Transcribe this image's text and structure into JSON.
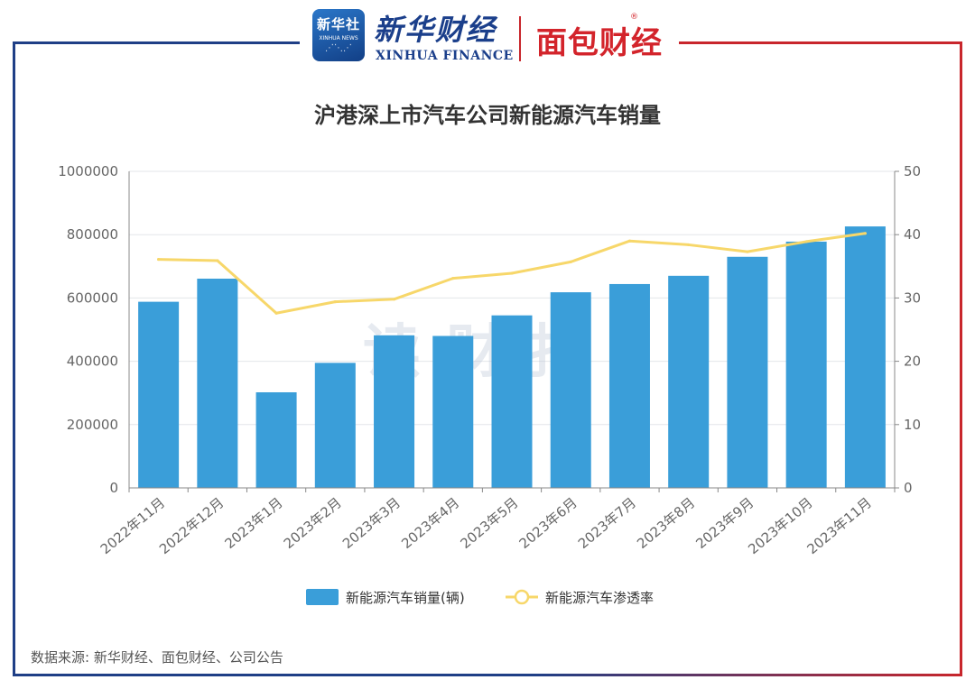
{
  "header": {
    "badge_line1": "新华社",
    "badge_line2": "XINHUA NEWS",
    "xinhua_cn": "新华财经",
    "xinhua_en": "XINHUA FINANCE",
    "mianbao": "面包财经",
    "registered": "®"
  },
  "chart_data": {
    "type": "bar+line",
    "title": "沪港深上市汽车公司新能源汽车销量",
    "categories": [
      "2022年11月",
      "2022年12月",
      "2023年1月",
      "2023年2月",
      "2023年3月",
      "2023年4月",
      "2023年5月",
      "2023年6月",
      "2023年7月",
      "2023年8月",
      "2023年9月",
      "2023年10月",
      "2023年11月"
    ],
    "series": [
      {
        "name": "新能源汽车销量(辆)",
        "type": "bar",
        "axis": "left",
        "color": "#3a9ed9",
        "values": [
          588000,
          661000,
          302000,
          395000,
          482000,
          480000,
          545000,
          618000,
          644000,
          670000,
          730000,
          778000,
          826000
        ]
      },
      {
        "name": "新能源汽车渗透率",
        "type": "line",
        "axis": "right",
        "color": "#f7d76a",
        "values": [
          36.1,
          35.9,
          27.6,
          29.4,
          29.8,
          33.1,
          33.9,
          35.7,
          39.0,
          38.4,
          37.3,
          38.9,
          40.2
        ]
      }
    ],
    "y_left": {
      "min": 0,
      "max": 1000000,
      "ticks": [
        "0",
        "200000",
        "400000",
        "600000",
        "800000",
        "1000000"
      ]
    },
    "y_right": {
      "min": 0,
      "max": 50,
      "ticks": [
        "0",
        "10",
        "20",
        "30",
        "40",
        "50"
      ]
    },
    "legend_position": "bottom-center",
    "watermark": "读财报",
    "grid": true
  },
  "source": "数据来源: 新华财经、面包财经、公司公告"
}
